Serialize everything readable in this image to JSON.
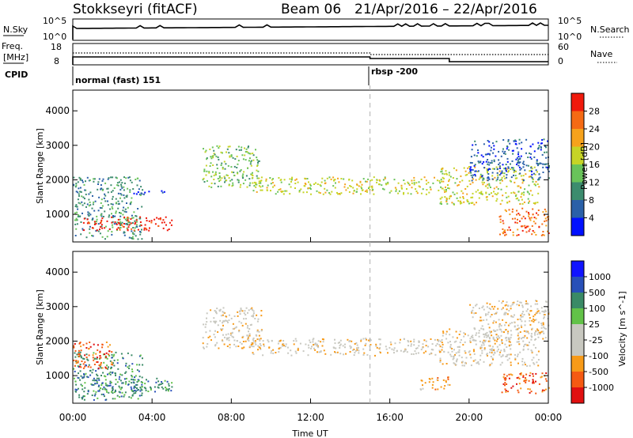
{
  "header": {
    "station": "Stokkseyri (fitACF)",
    "beam": "Beam 06",
    "dates": "21/Apr/2016 – 22/Apr/2016"
  },
  "top_panel": {
    "left_label": "N.Sky",
    "right_label": "N.Search",
    "left_ticks": [
      "10^5",
      "10^0"
    ],
    "right_ticks": [
      "10^5",
      "10^0"
    ]
  },
  "freq_panel": {
    "left_label_1": "Freq.",
    "left_label_2": "[MHz]",
    "left_label_3": "CPID",
    "left_ticks": [
      "18",
      "8"
    ],
    "right_label": "Nave",
    "right_ticks": [
      "60",
      "0"
    ],
    "modes": [
      {
        "name": "normal (fast) 151",
        "start_hour": 0
      },
      {
        "name": "rbsp -200",
        "start_hour": 15
      }
    ]
  },
  "colors": {
    "power_scale": [
      "#0010ff",
      "#2a60a8",
      "#3c8c6e",
      "#69c35a",
      "#c6d426",
      "#f6a21c",
      "#f56a14",
      "#f01a0c"
    ],
    "velocity_scale": [
      "#e01010",
      "#f55a12",
      "#f79a18",
      "#c8c8c0",
      "#c8c8c0",
      "#62c248",
      "#3a8a66",
      "#2850b8",
      "#1014ff"
    ],
    "ground_scatter": "#bdbdb6"
  },
  "chart_data": [
    {
      "type": "heatmap",
      "name": "power",
      "xlabel": "",
      "ylabel": "Slant Range [km]",
      "x_range": [
        0,
        24
      ],
      "ylim": [
        200,
        4600
      ],
      "y_ticks": [
        1000,
        2000,
        3000,
        4000
      ],
      "colorbar_label": "Power [dB]",
      "colorbar_ticks": [
        "4",
        "8",
        "12",
        "16",
        "20",
        "24",
        "28"
      ],
      "scatter_regions": [
        {
          "x": [
            0.0,
            3.5
          ],
          "y": [
            300,
            2100
          ],
          "level": 2
        },
        {
          "x": [
            0.5,
            5.0
          ],
          "y": [
            550,
            950
          ],
          "level": 7
        },
        {
          "x": [
            3.0,
            5.0
          ],
          "y": [
            1600,
            1700
          ],
          "level": 0
        },
        {
          "x": [
            6.5,
            9.5
          ],
          "y": [
            1800,
            3000
          ],
          "level": 3
        },
        {
          "x": [
            9.0,
            18.5
          ],
          "y": [
            1600,
            2100
          ],
          "level": 4
        },
        {
          "x": [
            18.5,
            23.5
          ],
          "y": [
            1300,
            2400
          ],
          "level": 4
        },
        {
          "x": [
            21.5,
            24.0
          ],
          "y": [
            400,
            1200
          ],
          "level": 6
        },
        {
          "x": [
            20.0,
            24.0
          ],
          "y": [
            2000,
            3200
          ],
          "level": 1
        }
      ]
    },
    {
      "type": "heatmap",
      "name": "velocity",
      "xlabel": "Time UT",
      "ylabel": "Slant Range [km]",
      "x_range": [
        0,
        24
      ],
      "x_ticks": [
        "00:00",
        "04:00",
        "08:00",
        "12:00",
        "16:00",
        "20:00",
        "00:00"
      ],
      "ylim": [
        200,
        4600
      ],
      "y_ticks": [
        1000,
        2000,
        3000,
        4000
      ],
      "colorbar_label": "Velocity [m s^-1]",
      "colorbar_ticks": [
        "1000",
        "500",
        "100",
        "25",
        "-25",
        "-100",
        "-500",
        "-1000"
      ],
      "scatter_regions": [
        {
          "x": [
            0.0,
            3.5
          ],
          "y": [
            300,
            1700
          ],
          "level": 6
        },
        {
          "x": [
            0.5,
            5.0
          ],
          "y": [
            550,
            950
          ],
          "level": 6
        },
        {
          "x": [
            0.0,
            2.0
          ],
          "y": [
            1200,
            2000
          ],
          "level": 1
        },
        {
          "x": [
            6.5,
            9.5
          ],
          "y": [
            1800,
            3000
          ],
          "level": 3
        },
        {
          "x": [
            9.0,
            18.5
          ],
          "y": [
            1600,
            2100
          ],
          "level": 3
        },
        {
          "x": [
            18.5,
            23.5
          ],
          "y": [
            1300,
            2400
          ],
          "level": 3
        },
        {
          "x": [
            17.5,
            19.0
          ],
          "y": [
            600,
            1000
          ],
          "level": 2
        },
        {
          "x": [
            21.5,
            24.0
          ],
          "y": [
            500,
            1100
          ],
          "level": 1
        },
        {
          "x": [
            20.0,
            24.0
          ],
          "y": [
            2000,
            3200
          ],
          "level": 3
        }
      ]
    }
  ]
}
